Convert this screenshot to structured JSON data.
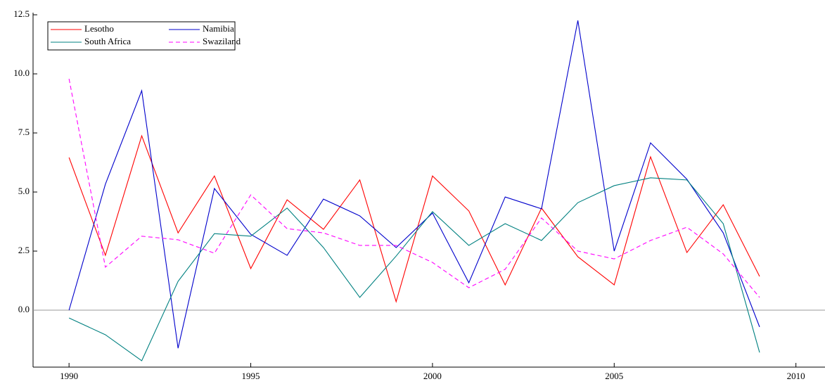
{
  "chart_data": {
    "type": "line",
    "x": [
      1990,
      1991,
      1992,
      1993,
      1994,
      1995,
      1996,
      1997,
      1998,
      1999,
      2000,
      2001,
      2002,
      2003,
      2004,
      2005,
      2006,
      2007,
      2008,
      2009
    ],
    "series": [
      {
        "name": "Lesotho",
        "color": "#ff0000",
        "dashed": false,
        "values": [
          6.46,
          2.32,
          7.38,
          3.27,
          5.68,
          1.76,
          4.67,
          3.42,
          5.51,
          0.36,
          5.68,
          4.2,
          1.07,
          4.32,
          2.26,
          1.07,
          6.49,
          2.44,
          4.46,
          1.43
        ]
      },
      {
        "name": "Namibia",
        "color": "#0000cc",
        "dashed": false,
        "values": [
          0,
          5.33,
          9.29,
          -1.61,
          5.15,
          3.21,
          2.32,
          4.7,
          3.99,
          2.65,
          4.11,
          1.16,
          4.79,
          4.29,
          12.26,
          2.5,
          7.08,
          5.54,
          3.27,
          -0.71
        ]
      },
      {
        "name": "South Africa",
        "color": "#008080",
        "dashed": false,
        "values": [
          -0.33,
          -1.04,
          -2.14,
          1.22,
          3.24,
          3.13,
          4.32,
          2.65,
          0.54,
          2.29,
          4.17,
          2.74,
          3.66,
          2.95,
          4.55,
          5.27,
          5.6,
          5.51,
          3.66,
          -1.79
        ]
      },
      {
        "name": "Swaziland",
        "color": "#ff00ff",
        "dashed": true,
        "values": [
          9.79,
          1.82,
          3.13,
          2.98,
          2.41,
          4.88,
          3.45,
          3.27,
          2.74,
          2.74,
          2.02,
          0.95,
          1.73,
          3.9,
          2.5,
          2.17,
          2.95,
          3.51,
          2.38,
          0.54
        ]
      }
    ],
    "xlim": [
      1989.01,
      2010.8
    ],
    "ylim": [
      -2.41,
      12.59
    ],
    "xticks": [
      1990,
      1995,
      2000,
      2005,
      2010
    ],
    "yticks": [
      {
        "value": 0,
        "label": "0.0"
      },
      2.5,
      {
        "value": 5,
        "label": "5.0"
      },
      7.5,
      {
        "value": 10,
        "label": "10.0"
      },
      12.5
    ],
    "zero_line": true
  }
}
